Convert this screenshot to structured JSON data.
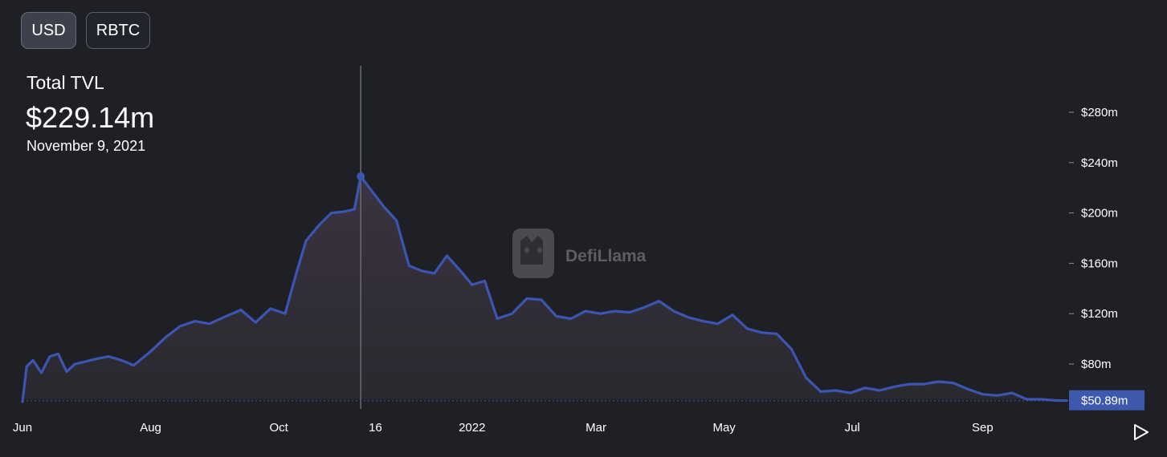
{
  "toolbar": {
    "usd_label": "USD",
    "rbtc_label": "RBTC"
  },
  "tooltip": {
    "label": "Total TVL",
    "value": "$229.14m",
    "date": "November 9, 2021"
  },
  "watermark": {
    "text": "DefiLlama"
  },
  "colors": {
    "background": "#1f2026",
    "line": "#3a56b0",
    "area_top": "#3c3442",
    "price_tag": "#3e58ad"
  },
  "icons": {
    "play": "play-icon",
    "watermark_logo": "llama-logo-icon"
  },
  "chart_data": {
    "type": "area",
    "title": "Total TVL",
    "series": [
      {
        "values": [
          [
            "2021-06-01",
            50
          ],
          [
            "2021-06-03",
            78
          ],
          [
            "2021-06-06",
            83
          ],
          [
            "2021-06-10",
            73
          ],
          [
            "2021-06-14",
            86
          ],
          [
            "2021-06-18",
            88
          ],
          [
            "2021-06-22",
            74
          ],
          [
            "2021-06-26",
            80
          ],
          [
            "2021-07-01",
            82
          ],
          [
            "2021-07-06",
            84
          ],
          [
            "2021-07-12",
            86
          ],
          [
            "2021-07-18",
            83
          ],
          [
            "2021-07-24",
            79
          ],
          [
            "2021-08-01",
            90
          ],
          [
            "2021-08-08",
            101
          ],
          [
            "2021-08-15",
            110
          ],
          [
            "2021-08-22",
            114
          ],
          [
            "2021-08-29",
            112
          ],
          [
            "2021-09-06",
            118
          ],
          [
            "2021-09-13",
            123
          ],
          [
            "2021-09-20",
            113
          ],
          [
            "2021-09-27",
            124
          ],
          [
            "2021-10-04",
            120
          ],
          [
            "2021-10-09",
            150
          ],
          [
            "2021-10-14",
            178
          ],
          [
            "2021-10-20",
            190
          ],
          [
            "2021-10-26",
            200
          ],
          [
            "2021-11-01",
            201
          ],
          [
            "2021-11-06",
            203
          ],
          [
            "2021-11-09",
            229.14
          ],
          [
            "2021-11-14",
            218
          ],
          [
            "2021-11-20",
            205
          ],
          [
            "2021-11-26",
            194
          ],
          [
            "2021-12-02",
            158
          ],
          [
            "2021-12-08",
            154
          ],
          [
            "2021-12-14",
            152
          ],
          [
            "2021-12-20",
            166
          ],
          [
            "2021-12-26",
            155
          ],
          [
            "2022-01-01",
            143
          ],
          [
            "2022-01-07",
            146
          ],
          [
            "2022-01-13",
            116
          ],
          [
            "2022-01-20",
            120
          ],
          [
            "2022-01-27",
            132
          ],
          [
            "2022-02-03",
            131
          ],
          [
            "2022-02-10",
            118
          ],
          [
            "2022-02-17",
            116
          ],
          [
            "2022-02-24",
            122
          ],
          [
            "2022-03-03",
            120
          ],
          [
            "2022-03-10",
            122
          ],
          [
            "2022-03-17",
            121
          ],
          [
            "2022-03-24",
            125
          ],
          [
            "2022-03-31",
            130
          ],
          [
            "2022-04-07",
            122
          ],
          [
            "2022-04-14",
            117
          ],
          [
            "2022-04-21",
            114
          ],
          [
            "2022-04-28",
            112
          ],
          [
            "2022-05-05",
            119
          ],
          [
            "2022-05-12",
            108
          ],
          [
            "2022-05-19",
            105
          ],
          [
            "2022-05-26",
            104
          ],
          [
            "2022-06-02",
            92
          ],
          [
            "2022-06-09",
            69
          ],
          [
            "2022-06-16",
            58
          ],
          [
            "2022-06-23",
            59
          ],
          [
            "2022-06-30",
            57
          ],
          [
            "2022-07-07",
            61
          ],
          [
            "2022-07-14",
            59
          ],
          [
            "2022-07-21",
            62
          ],
          [
            "2022-07-28",
            64
          ],
          [
            "2022-08-04",
            64
          ],
          [
            "2022-08-11",
            66
          ],
          [
            "2022-08-18",
            65
          ],
          [
            "2022-08-25",
            60
          ],
          [
            "2022-09-01",
            56
          ],
          [
            "2022-09-08",
            55
          ],
          [
            "2022-09-15",
            57
          ],
          [
            "2022-09-22",
            52
          ],
          [
            "2022-09-29",
            52
          ],
          [
            "2022-10-06",
            51
          ],
          [
            "2022-10-11",
            50.89
          ]
        ]
      }
    ],
    "x_ticks": [
      {
        "date": "2021-06-01",
        "label": "Jun"
      },
      {
        "date": "2021-08-01",
        "label": "Aug"
      },
      {
        "date": "2021-10-01",
        "label": "Oct"
      },
      {
        "date": "2021-11-16",
        "label": "16"
      },
      {
        "date": "2022-01-01",
        "label": "2022"
      },
      {
        "date": "2022-03-01",
        "label": "Mar"
      },
      {
        "date": "2022-05-01",
        "label": "May"
      },
      {
        "date": "2022-07-01",
        "label": "Jul"
      },
      {
        "date": "2022-09-01",
        "label": "Sep"
      }
    ],
    "y_ticks": [
      {
        "value": 80,
        "label": "$80m"
      },
      {
        "value": 120,
        "label": "$120m"
      },
      {
        "value": 160,
        "label": "$160m"
      },
      {
        "value": 200,
        "label": "$200m"
      },
      {
        "value": 240,
        "label": "$240m"
      },
      {
        "value": 280,
        "label": "$280m"
      }
    ],
    "xlim": [
      "2021-06-01",
      "2022-10-11"
    ],
    "ylim": [
      50,
      280
    ],
    "crosshair": {
      "date": "2021-11-09",
      "value": 229.14
    },
    "last_value": {
      "value": 50.89,
      "label": "$50.89m"
    },
    "grid": false,
    "legend": "none"
  }
}
